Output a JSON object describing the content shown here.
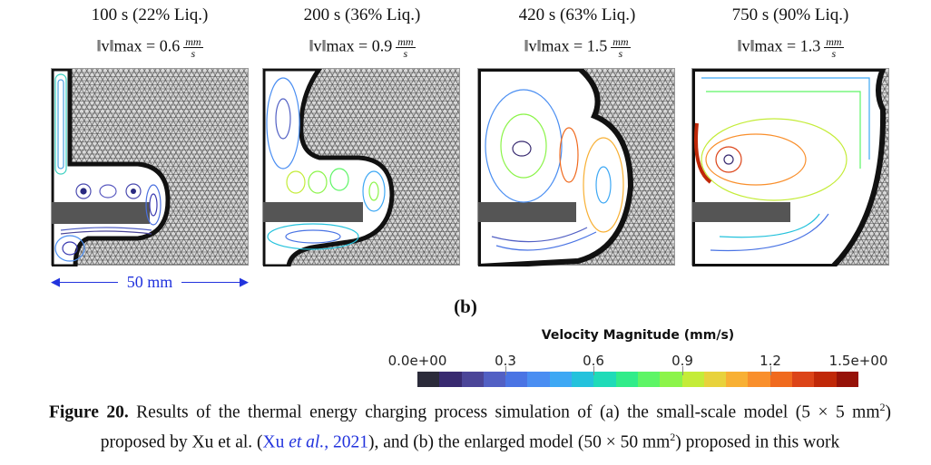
{
  "panels": [
    {
      "title": "100 s (22% Liq.)",
      "vmax_label": "‖v‖max = 0.6",
      "unit_num": "mm",
      "unit_den": "s"
    },
    {
      "title": "200 s (36% Liq.)",
      "vmax_label": "‖v‖max = 0.9",
      "unit_num": "mm",
      "unit_den": "s"
    },
    {
      "title": "420 s (63% Liq.)",
      "vmax_label": "‖v‖max = 1.5",
      "unit_num": "mm",
      "unit_den": "s"
    },
    {
      "title": "750 s (90% Liq.)",
      "vmax_label": "‖v‖max = 1.3",
      "unit_num": "mm",
      "unit_den": "s"
    }
  ],
  "scale_bar": "50 mm",
  "sublabel": "(b)",
  "colorbar": {
    "title": "Velocity Magnitude (mm/s)",
    "ticks": [
      "0.0e+00",
      "0.3",
      "0.6",
      "0.9",
      "1.2",
      "1.5e+00"
    ],
    "range": [
      0,
      1.5
    ],
    "colors": [
      "#2b2b3a",
      "#382a70",
      "#4b4598",
      "#5260c4",
      "#4a74e4",
      "#4a8ef2",
      "#3ea8f4",
      "#24c2dc",
      "#1fdbb8",
      "#31ec8a",
      "#5ef566",
      "#8cf44a",
      "#c4ec38",
      "#e8d23c",
      "#f8b034",
      "#f98f2c",
      "#f06a1e",
      "#dc4418",
      "#c02808",
      "#961208"
    ]
  },
  "caption": {
    "label": "Figure 20.",
    "text1": " Results of the thermal energy charging process simulation of (a) the small-scale model (5 × 5 mm",
    "sup1": "2",
    "text2": ") proposed by Xu et al. (",
    "cite_author": "Xu ",
    "cite_etal": "et al.,",
    "cite_year": " 2021",
    "text3": "), and (b) the enlarged model (50 × 50 mm",
    "sup2": "2",
    "text4": ") proposed in this work"
  }
}
